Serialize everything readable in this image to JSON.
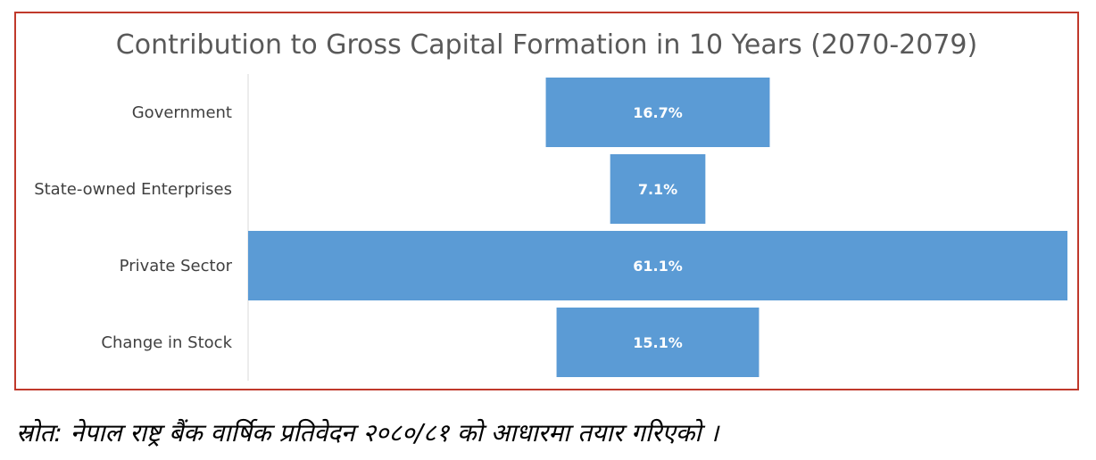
{
  "chart_data": {
    "type": "bar",
    "orientation": "horizontal",
    "title": "Contribution to Gross Capital Formation in 10 Years (2070-2079)",
    "categories": [
      "Government",
      "State-owned Enterprises",
      "Private Sector",
      "Change in Stock"
    ],
    "values": [
      16.7,
      7.1,
      61.1,
      15.1
    ],
    "value_labels": [
      "16.7%",
      "7.1%",
      "61.1%",
      "15.1%"
    ],
    "bar_alignment": "centered",
    "grid": false,
    "legend": "none",
    "bar_color": "#5b9bd5",
    "frame_color": "#c0392b"
  },
  "source_note": "स्रोत: नेपाल राष्ट्र बैंक वार्षिक प्रतिवेदन २०८०/८१ को आधारमा तयार गरिएको ।"
}
